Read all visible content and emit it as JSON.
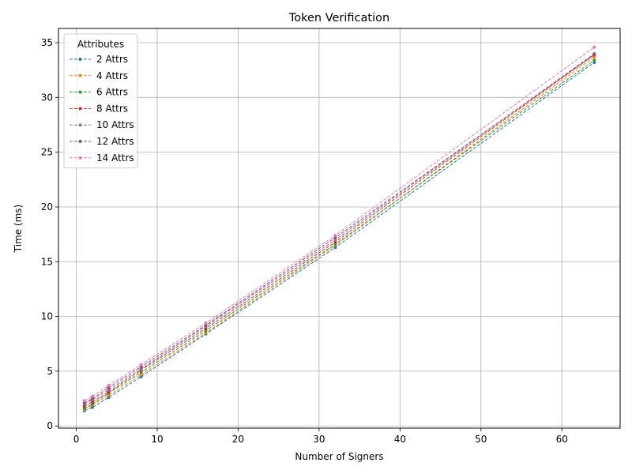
{
  "chart_data": {
    "type": "line",
    "title": "Token Verification",
    "xlabel": "Number of Signers",
    "ylabel": "Time (ms)",
    "xlim": [
      -2.2,
      67.2
    ],
    "ylim": [
      -0.2,
      36.3
    ],
    "xticks": [
      0,
      10,
      20,
      30,
      40,
      50,
      60
    ],
    "yticks": [
      0,
      5,
      10,
      15,
      20,
      25,
      30,
      35
    ],
    "grid": true,
    "legend": {
      "title": "Attributes",
      "placement": "top-left"
    },
    "line_style": "dashed with point markers",
    "x": [
      1,
      2,
      4,
      8,
      16,
      32,
      64
    ],
    "series": [
      {
        "name": "2 Attrs",
        "color": "#1f77b4",
        "values": [
          1.4,
          1.7,
          2.6,
          4.5,
          8.4,
          16.3,
          33.2
        ]
      },
      {
        "name": "4 Attrs",
        "color": "#ff7f0e",
        "values": [
          1.5,
          1.9,
          2.8,
          4.7,
          8.5,
          16.5,
          33.7
        ]
      },
      {
        "name": "6 Attrs",
        "color": "#2ca02c",
        "values": [
          1.6,
          2.0,
          3.0,
          4.9,
          8.7,
          16.6,
          33.4
        ]
      },
      {
        "name": "8 Attrs",
        "color": "#d62728",
        "values": [
          1.8,
          2.2,
          3.1,
          5.1,
          8.9,
          16.8,
          33.9
        ]
      },
      {
        "name": "10 Attrs",
        "color": "#9467bd",
        "values": [
          2.0,
          2.4,
          3.3,
          5.2,
          9.1,
          17.0,
          34.0
        ]
      },
      {
        "name": "12 Attrs",
        "color": "#8c564b",
        "values": [
          2.1,
          2.5,
          3.5,
          5.4,
          9.2,
          17.2,
          33.9
        ]
      },
      {
        "name": "14 Attrs",
        "color": "#e377c2",
        "values": [
          2.3,
          2.7,
          3.7,
          5.6,
          9.4,
          17.4,
          34.6
        ]
      }
    ]
  }
}
